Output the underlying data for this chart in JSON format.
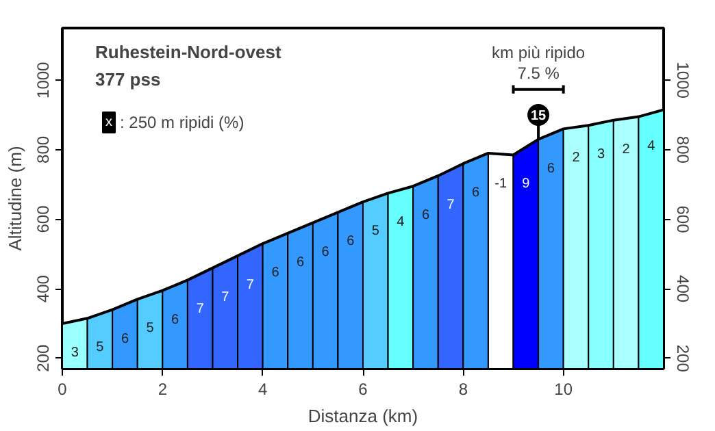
{
  "chart_data": {
    "type": "area",
    "title": "Ruhestein-Nord-ovest",
    "subtitle": "377 pss",
    "xlabel": "Distanza (km)",
    "ylabel": "Altitudine (m)",
    "x": [
      0,
      0.5,
      1,
      1.5,
      2,
      2.5,
      3,
      3.5,
      4,
      4.5,
      5,
      5.5,
      6,
      6.5,
      7,
      7.5,
      8,
      8.5,
      9,
      9.5,
      10,
      10.5,
      11,
      11.5,
      12
    ],
    "values": [
      300,
      315,
      340,
      370,
      395,
      425,
      460,
      495,
      530,
      560,
      590,
      620,
      650,
      675,
      695,
      725,
      760,
      790,
      785,
      830,
      860,
      870,
      885,
      895,
      915
    ],
    "xlim": [
      0,
      12
    ],
    "xticks": [
      0,
      2,
      4,
      6,
      8,
      10
    ],
    "ylim": [
      170,
      1150
    ],
    "yticks": [
      200,
      400,
      600,
      800,
      1000
    ],
    "y2lim": [
      170,
      1150
    ],
    "y2ticks": [
      200,
      400,
      600,
      800,
      1000
    ],
    "bands": [
      {
        "axis": "x",
        "from": 0,
        "to": 0.5,
        "label": "3",
        "color": "#99ffff"
      },
      {
        "axis": "x",
        "from": 0.5,
        "to": 1,
        "label": "5",
        "color": "#55ccff"
      },
      {
        "axis": "x",
        "from": 1,
        "to": 1.5,
        "label": "6",
        "color": "#3399ff"
      },
      {
        "axis": "x",
        "from": 1.5,
        "to": 2,
        "label": "5",
        "color": "#55ccff"
      },
      {
        "axis": "x",
        "from": 2,
        "to": 2.5,
        "label": "6",
        "color": "#3399ff"
      },
      {
        "axis": "x",
        "from": 2.5,
        "to": 3,
        "label": "7",
        "color": "#3366ff"
      },
      {
        "axis": "x",
        "from": 3,
        "to": 3.5,
        "label": "7",
        "color": "#3366ff"
      },
      {
        "axis": "x",
        "from": 3.5,
        "to": 4,
        "label": "7",
        "color": "#3366ff"
      },
      {
        "axis": "x",
        "from": 4,
        "to": 4.5,
        "label": "6",
        "color": "#3399ff"
      },
      {
        "axis": "x",
        "from": 4.5,
        "to": 5,
        "label": "6",
        "color": "#3399ff"
      },
      {
        "axis": "x",
        "from": 5,
        "to": 5.5,
        "label": "6",
        "color": "#3399ff"
      },
      {
        "axis": "x",
        "from": 5.5,
        "to": 6,
        "label": "6",
        "color": "#3399ff"
      },
      {
        "axis": "x",
        "from": 6,
        "to": 6.5,
        "label": "5",
        "color": "#55ccff"
      },
      {
        "axis": "x",
        "from": 6.5,
        "to": 7,
        "label": "4",
        "color": "#66ffff"
      },
      {
        "axis": "x",
        "from": 7,
        "to": 7.5,
        "label": "6",
        "color": "#3399ff"
      },
      {
        "axis": "x",
        "from": 7.5,
        "to": 8,
        "label": "7",
        "color": "#3366ff"
      },
      {
        "axis": "x",
        "from": 8,
        "to": 8.5,
        "label": "6",
        "color": "#3399ff"
      },
      {
        "axis": "x",
        "from": 8.5,
        "to": 9,
        "label": "-1",
        "color": "#ffffff"
      },
      {
        "axis": "x",
        "from": 9,
        "to": 9.5,
        "label": "9",
        "color": "#0000ff"
      },
      {
        "axis": "x",
        "from": 9.5,
        "to": 10,
        "label": "6",
        "color": "#3399ff"
      },
      {
        "axis": "x",
        "from": 10,
        "to": 10.5,
        "label": "2",
        "color": "#aaffff"
      },
      {
        "axis": "x",
        "from": 10.5,
        "to": 11,
        "label": "3",
        "color": "#88ffff"
      },
      {
        "axis": "x",
        "from": 11,
        "to": 11.5,
        "label": "2",
        "color": "#aaffff"
      },
      {
        "axis": "x",
        "from": 11.5,
        "to": 12,
        "label": "4",
        "color": "#66ffff"
      }
    ],
    "annotations": [
      "x",
      ": 250 m ripidi (%)",
      "km più ripido",
      "7.5 %",
      {
        "text": "15",
        "x": 9.5,
        "y": 830
      }
    ],
    "grid": false
  }
}
